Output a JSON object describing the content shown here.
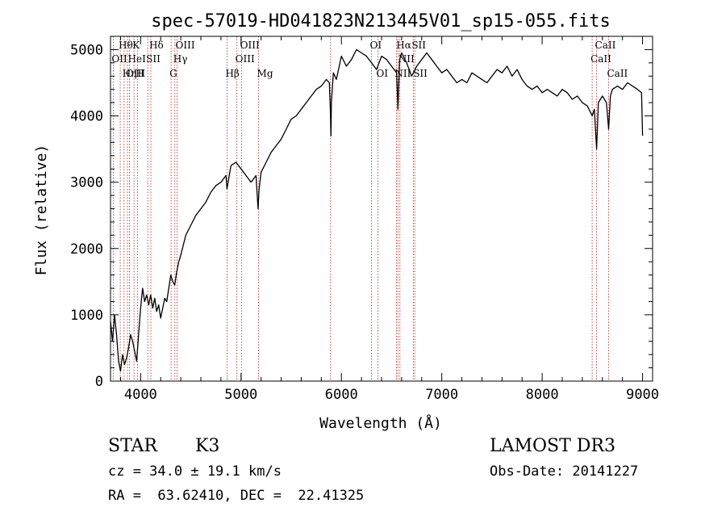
{
  "chart_data": {
    "type": "line",
    "title": "spec-57019-HD041823N213445V01_sp15-055.fits",
    "xlabel": "Wavelength (Å)",
    "ylabel": "Flux (relative)",
    "xlim": [
      3700,
      9100
    ],
    "ylim": [
      0,
      5200
    ],
    "xticks": [
      4000,
      5000,
      6000,
      7000,
      8000,
      9000
    ],
    "yticks": [
      0,
      1000,
      2000,
      3000,
      4000,
      5000
    ],
    "grid": false,
    "series": [
      {
        "name": "flux",
        "color": "#000000",
        "x": [
          3700,
          3720,
          3740,
          3760,
          3780,
          3800,
          3820,
          3840,
          3860,
          3880,
          3900,
          3920,
          3940,
          3960,
          3980,
          4000,
          4020,
          4040,
          4060,
          4080,
          4100,
          4120,
          4140,
          4160,
          4180,
          4200,
          4220,
          4240,
          4260,
          4280,
          4300,
          4320,
          4340,
          4360,
          4380,
          4400,
          4450,
          4500,
          4550,
          4600,
          4650,
          4700,
          4750,
          4800,
          4850,
          4860,
          4900,
          4950,
          5000,
          5050,
          5100,
          5150,
          5170,
          5180,
          5200,
          5250,
          5300,
          5350,
          5400,
          5450,
          5500,
          5550,
          5600,
          5650,
          5700,
          5750,
          5800,
          5850,
          5880,
          5890,
          5896,
          5900,
          5920,
          5950,
          6000,
          6050,
          6100,
          6150,
          6200,
          6250,
          6300,
          6350,
          6400,
          6450,
          6500,
          6550,
          6563,
          6580,
          6600,
          6650,
          6700,
          6750,
          6800,
          6850,
          6900,
          6950,
          7000,
          7050,
          7100,
          7150,
          7200,
          7250,
          7300,
          7350,
          7400,
          7450,
          7500,
          7550,
          7600,
          7650,
          7700,
          7750,
          7800,
          7850,
          7900,
          7950,
          8000,
          8050,
          8100,
          8150,
          8200,
          8250,
          8300,
          8350,
          8400,
          8450,
          8498,
          8520,
          8542,
          8560,
          8600,
          8640,
          8662,
          8680,
          8700,
          8750,
          8800,
          8850,
          8900,
          8950,
          8990,
          9000
        ],
        "values": [
          900,
          600,
          1000,
          700,
          300,
          150,
          400,
          250,
          350,
          500,
          700,
          600,
          450,
          300,
          700,
          1100,
          1400,
          1200,
          1300,
          1150,
          1300,
          1100,
          1250,
          1050,
          1150,
          950,
          1100,
          1250,
          1200,
          1400,
          1600,
          1500,
          1450,
          1650,
          1800,
          1900,
          2200,
          2350,
          2500,
          2600,
          2700,
          2850,
          2950,
          3000,
          3100,
          2900,
          3250,
          3300,
          3200,
          3100,
          3000,
          3100,
          2600,
          2900,
          3150,
          3300,
          3450,
          3550,
          3650,
          3800,
          3950,
          4000,
          4100,
          4200,
          4300,
          4400,
          4450,
          4550,
          4500,
          4100,
          3700,
          4200,
          4650,
          4550,
          4900,
          4750,
          4850,
          5000,
          4950,
          4900,
          4800,
          4700,
          4900,
          4850,
          4750,
          4650,
          4100,
          4850,
          4950,
          4800,
          4600,
          4750,
          4850,
          4950,
          4850,
          4750,
          4650,
          4700,
          4600,
          4500,
          4550,
          4500,
          4650,
          4600,
          4550,
          4500,
          4600,
          4700,
          4650,
          4750,
          4600,
          4700,
          4550,
          4450,
          4400,
          4450,
          4350,
          4400,
          4350,
          4300,
          4400,
          4350,
          4250,
          4300,
          4200,
          4150,
          4000,
          4100,
          3500,
          4200,
          4300,
          4200,
          3800,
          4300,
          4400,
          4450,
          4400,
          4500,
          4450,
          4400,
          4350,
          3700
        ]
      }
    ],
    "lines": [
      {
        "wl": 3727,
        "label": "OII",
        "row": 2
      },
      {
        "wl": 3797,
        "label": "Hθ",
        "row": 1
      },
      {
        "wl": 3835,
        "label": "Hη",
        "row": 3
      },
      {
        "wl": 3869,
        "label": "OIII",
        "row": 3
      },
      {
        "wl": 3889,
        "label": "HeI",
        "row": 2
      },
      {
        "wl": 3934,
        "label": "K",
        "row": 1
      },
      {
        "wl": 3968,
        "label": "H",
        "row": 3
      },
      {
        "wl": 4071,
        "label": "SII",
        "row": 2
      },
      {
        "wl": 4102,
        "label": "Hδ",
        "row": 1
      },
      {
        "wl": 4304,
        "label": "G",
        "row": 3
      },
      {
        "wl": 4341,
        "label": "Hγ",
        "row": 2
      },
      {
        "wl": 4363,
        "label": "OIII",
        "row": 1
      },
      {
        "wl": 4861,
        "label": "Hβ",
        "row": 3
      },
      {
        "wl": 4959,
        "label": "OIII",
        "row": 2
      },
      {
        "wl": 5007,
        "label": "OIII",
        "row": 1
      },
      {
        "wl": 5175,
        "label": "Mg",
        "row": 3
      },
      {
        "wl": 5892,
        "label": "",
        "row": 0
      },
      {
        "wl": 6300,
        "label": "OI",
        "row": 1
      },
      {
        "wl": 6364,
        "label": "OI",
        "row": 3
      },
      {
        "wl": 6548,
        "label": "NII",
        "row": 3
      },
      {
        "wl": 6563,
        "label": "Hα",
        "row": 1
      },
      {
        "wl": 6583,
        "label": "NII",
        "row": 2
      },
      {
        "wl": 6716,
        "label": "SII",
        "row": 1
      },
      {
        "wl": 6731,
        "label": "SII",
        "row": 3
      },
      {
        "wl": 8498,
        "label": "CaII",
        "row": 2
      },
      {
        "wl": 8542,
        "label": "CaII",
        "row": 1
      },
      {
        "wl": 8662,
        "label": "CaII",
        "row": 3
      }
    ]
  },
  "info": {
    "object_type": "STAR",
    "subclass": "K3",
    "survey": "LAMOST DR3",
    "cz": "cz = 34.0 ± 19.1 km/s",
    "obs_date": "Obs-Date: 20141227",
    "coords": "RA =  63.62410, DEC =  22.41325"
  }
}
